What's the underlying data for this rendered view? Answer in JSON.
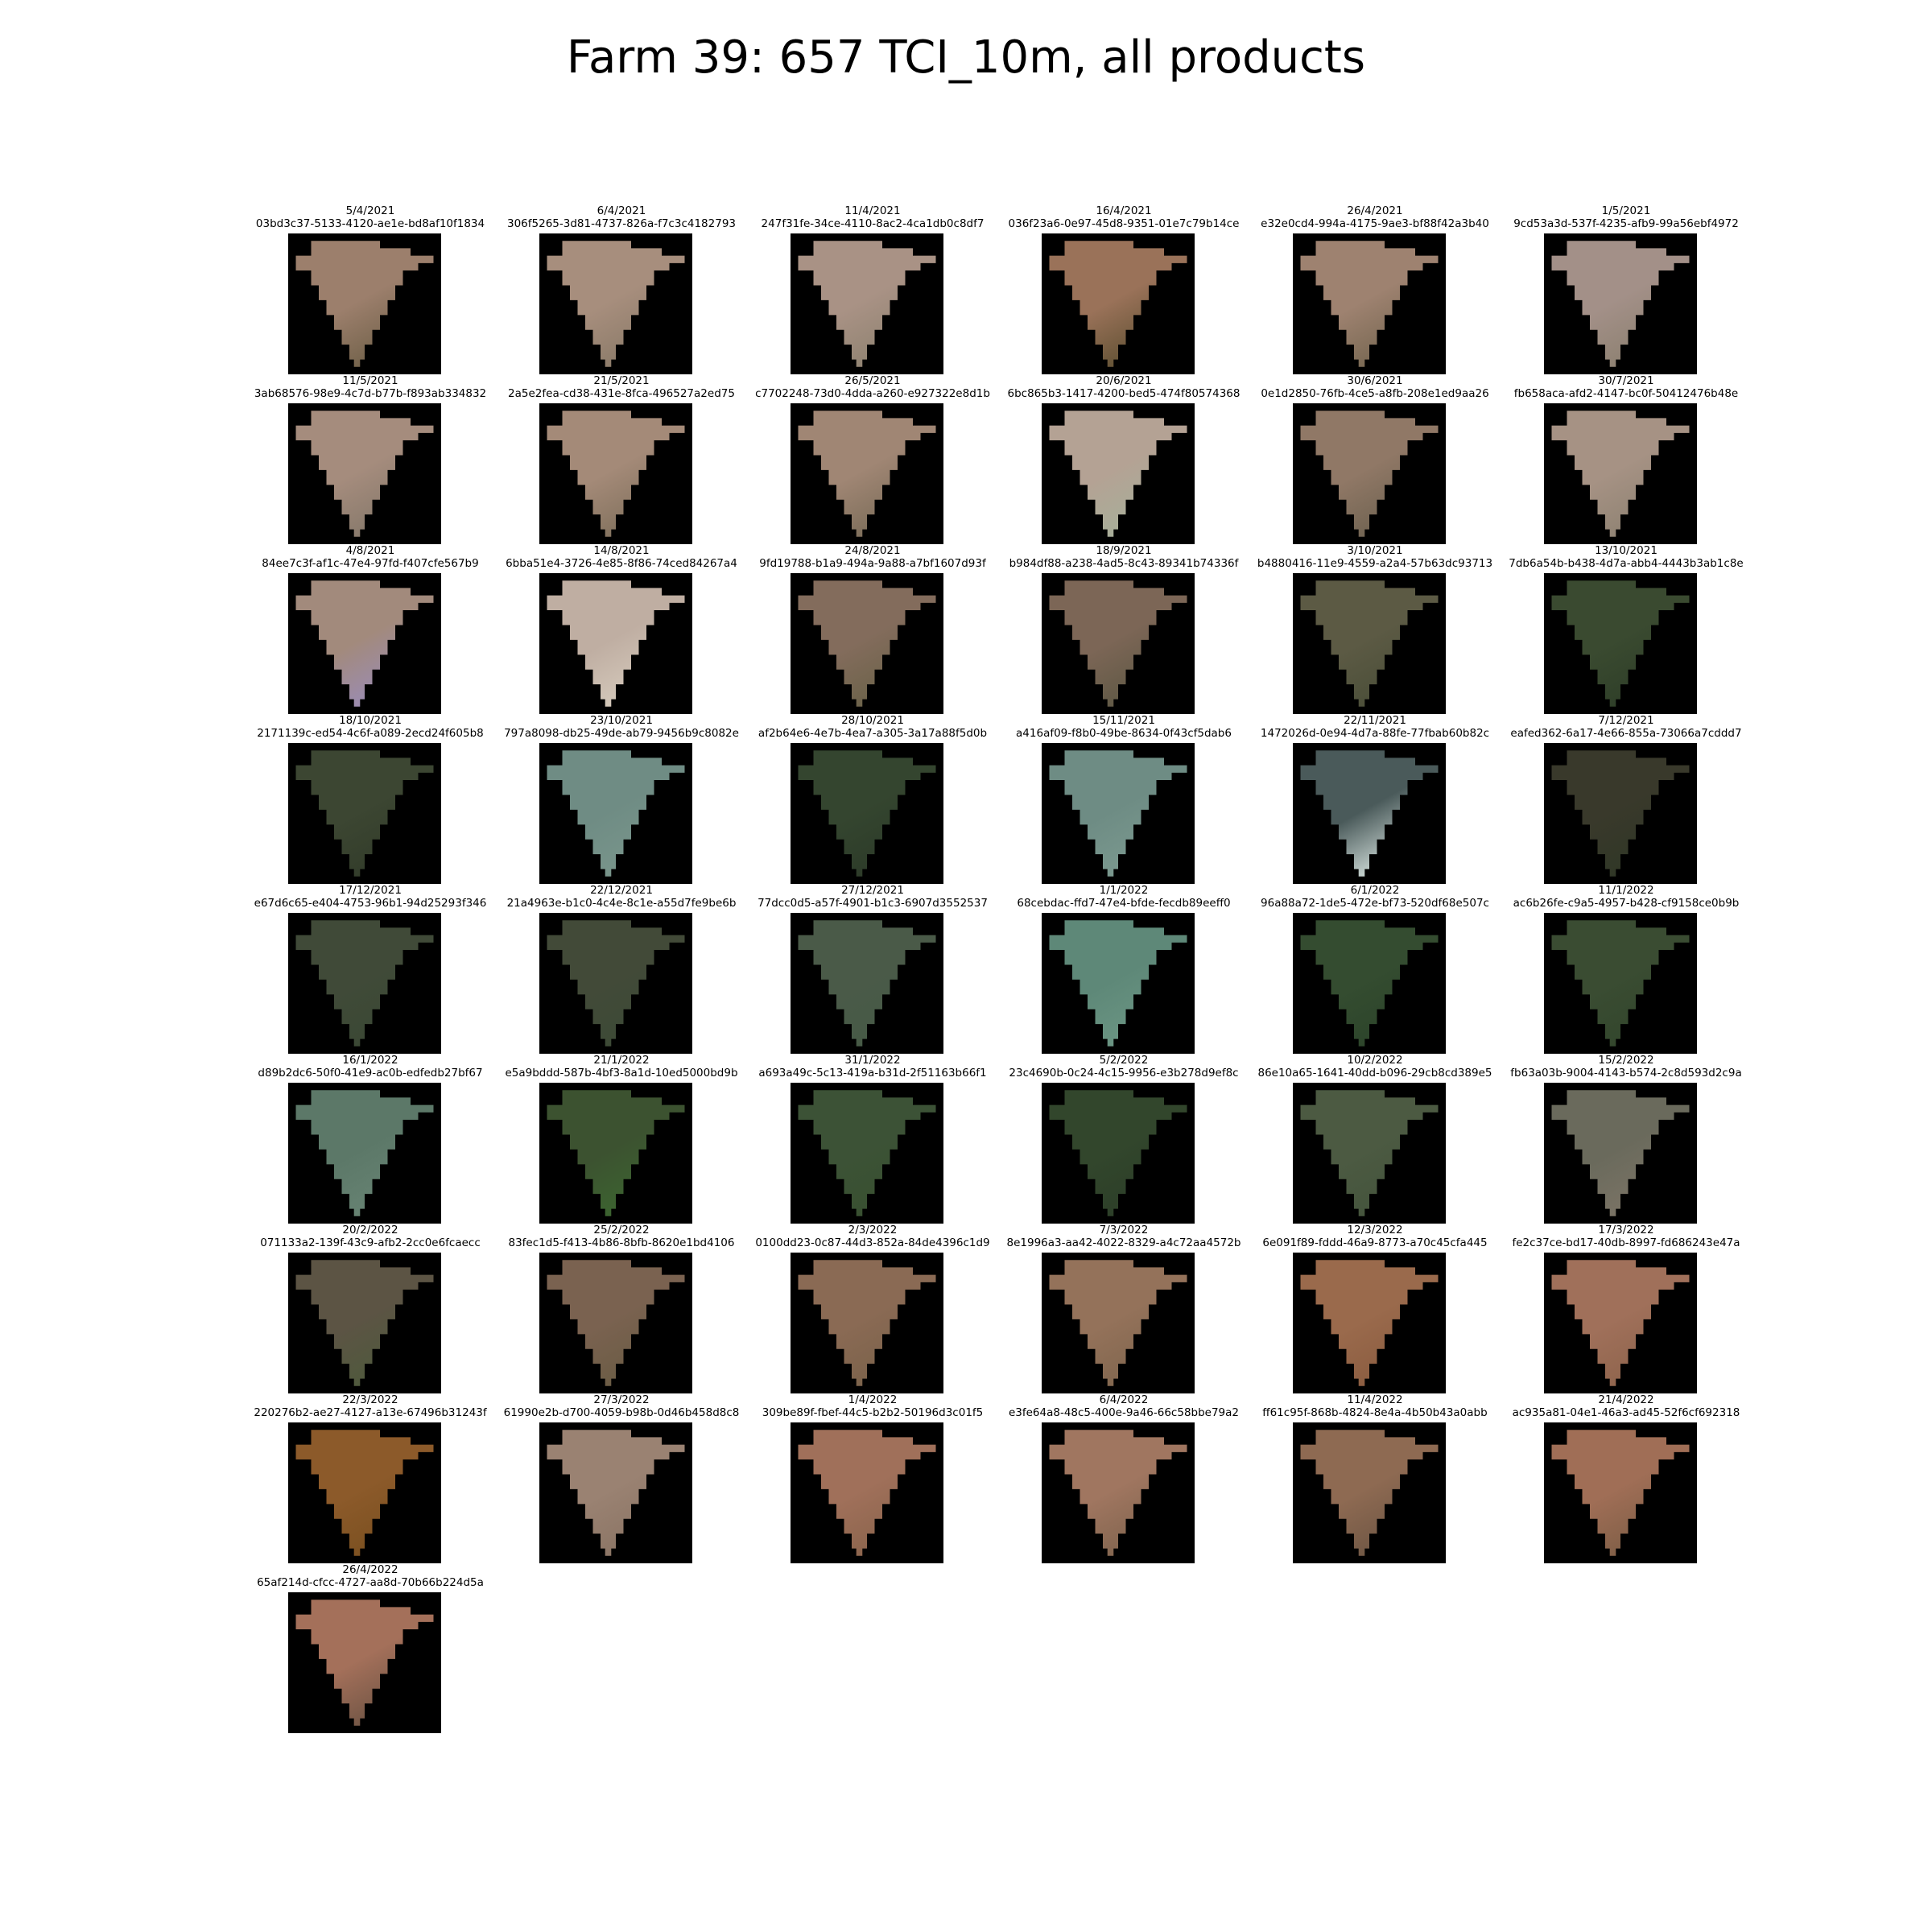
{
  "title": "Farm 39: 657 TCI_10m, all products",
  "products": [
    {
      "date": "5/4/2021",
      "id": "03bd3c37-5133-4120-ae1e-bd8af10f1834",
      "color": "#9c7f6c",
      "shade": "#6f6048"
    },
    {
      "date": "6/4/2021",
      "id": "306f5265-3d81-4737-826a-f7c3c4182793",
      "color": "#a78e7d",
      "shade": "#8a7a68"
    },
    {
      "date": "11/4/2021",
      "id": "247f31fe-34ce-4110-8ac2-4ca1db0c8df7",
      "color": "#a99285",
      "shade": "#8e8270"
    },
    {
      "date": "16/4/2021",
      "id": "036f23a6-0e97-45d8-9351-01e7c79b14ce",
      "color": "#9a7259",
      "shade": "#5e5032"
    },
    {
      "date": "26/4/2021",
      "id": "e32e0cd4-994a-4175-9ae3-bf88f42a3b40",
      "color": "#9e8270",
      "shade": "#756650"
    },
    {
      "date": "1/5/2021",
      "id": "9cd53a3d-537f-4235-afb9-99a56ebf4972",
      "color": "#a39088",
      "shade": "#8c8070"
    },
    {
      "date": "11/5/2021",
      "id": "3ab68576-98e9-4c7d-b77b-f893ab334832",
      "color": "#a58c7d",
      "shade": "#85786a"
    },
    {
      "date": "21/5/2021",
      "id": "2a5e2fea-cd38-431e-8fca-496527a2ed75",
      "color": "#a48a78",
      "shade": "#80705c"
    },
    {
      "date": "26/5/2021",
      "id": "c7702248-73d0-4dda-a260-e927322e8d1b",
      "color": "#a08674",
      "shade": "#7a6c58"
    },
    {
      "date": "20/6/2021",
      "id": "6bc865b3-1417-4200-bed5-474f80574368",
      "color": "#b4a294",
      "shade": "#a6b09a"
    },
    {
      "date": "30/6/2021",
      "id": "0e1d2850-76fb-4ce5-a8fb-208e1ed9aa26",
      "color": "#907866",
      "shade": "#6e6250"
    },
    {
      "date": "30/7/2021",
      "id": "fb658aca-afd2-4147-bc0f-50412476b48e",
      "color": "#a69284",
      "shade": "#8e8272"
    },
    {
      "date": "4/8/2021",
      "id": "84ee7c3f-af1c-47e4-97fd-f407cfe567b9",
      "color": "#a28a7c",
      "shade": "#9a8cb8"
    },
    {
      "date": "14/8/2021",
      "id": "6bba51e4-3726-4e85-8f86-74ced84267a4",
      "color": "#bfaea2",
      "shade": "#d6cbbd"
    },
    {
      "date": "24/8/2021",
      "id": "9fd19788-b1a9-494a-9a88-a7bf1607d93f",
      "color": "#836c5c",
      "shade": "#6a6248"
    },
    {
      "date": "18/9/2021",
      "id": "b984df88-a238-4ad5-8c43-89341b74336f",
      "color": "#7c6656",
      "shade": "#5e5844"
    },
    {
      "date": "3/10/2021",
      "id": "b4880416-11e9-4559-a2a4-57b63dc93713",
      "color": "#5c5a44",
      "shade": "#4a4e38"
    },
    {
      "date": "13/10/2021",
      "id": "7db6a54b-b438-4d7a-abb4-4443b3ab1c8e",
      "color": "#3a4a30",
      "shade": "#2e3e28"
    },
    {
      "date": "18/10/2021",
      "id": "2171139c-ed54-4c6f-a089-2ecd24f605b8",
      "color": "#3c4632",
      "shade": "#323c2a"
    },
    {
      "date": "23/10/2021",
      "id": "797a8098-db25-49de-ab79-9456b9c8082e",
      "color": "#6f8c84",
      "shade": "#7a968c"
    },
    {
      "date": "28/10/2021",
      "id": "af2b64e6-4e7b-4ea7-a305-3a17a88f5d0b",
      "color": "#34452f",
      "shade": "#2c3a28"
    },
    {
      "date": "15/11/2021",
      "id": "a416af09-f8b0-49be-8634-0f43cf5dab6",
      "color": "#6e8c84",
      "shade": "#7c9a90"
    },
    {
      "date": "22/11/2021",
      "id": "1472026d-0e94-4d7a-88fe-77fbab60b82c",
      "color": "#4a5a5a",
      "shade": "#d8e4e0"
    },
    {
      "date": "7/12/2021",
      "id": "eafed362-6a17-4e66-855a-73066a7cddd7",
      "color": "#39392b",
      "shade": "#2f3726"
    },
    {
      "date": "17/12/2021",
      "id": "e67d6c65-e404-4753-96b1-94d25293f346",
      "color": "#404a38",
      "shade": "#3a4834"
    },
    {
      "date": "22/12/2021",
      "id": "21a4963e-b1c0-4c4e-8c1e-a55d7fe9be6b",
      "color": "#424a38",
      "shade": "#3c4a36"
    },
    {
      "date": "27/12/2021",
      "id": "77dcc0d5-a57f-4901-b1c3-6907d3552537",
      "color": "#4a5a48",
      "shade": "#465a46"
    },
    {
      "date": "1/1/2022",
      "id": "68cebdac-ffd7-47e4-bfde-fecdb89eeff0",
      "color": "#5e8878",
      "shade": "#6c9684"
    },
    {
      "date": "6/1/2022",
      "id": "96a88a72-1de5-472e-bf73-520df68e507c",
      "color": "#344c30",
      "shade": "#2c442a"
    },
    {
      "date": "11/1/2022",
      "id": "ac6b26fe-c9a5-4957-b428-cf9158ce0b9b",
      "color": "#3a4c32",
      "shade": "#32462c"
    },
    {
      "date": "16/1/2022",
      "id": "d89b2dc6-50f0-41e9-ac0b-edfedb27bf67",
      "color": "#5c7868",
      "shade": "#688474"
    },
    {
      "date": "21/1/2022",
      "id": "e5a9bddd-587b-4bf3-8a1d-10ed5000bd9b",
      "color": "#3c5230",
      "shade": "#3c6630"
    },
    {
      "date": "31/1/2022",
      "id": "a693a49c-5c13-419a-b31d-2f51163b66f1",
      "color": "#3c5236",
      "shade": "#385030"
    },
    {
      "date": "5/2/2022",
      "id": "23c4690b-0c24-4c15-9956-e3b278d9ef8c",
      "color": "#32462c",
      "shade": "#2c3e28"
    },
    {
      "date": "10/2/2022",
      "id": "86e10a65-1641-40dd-b096-29cb8cd389e5",
      "color": "#4c5a42",
      "shade": "#44543c"
    },
    {
      "date": "15/2/2022",
      "id": "fb63a03b-9004-4143-b574-2c8d593d2c9a",
      "color": "#6a6a5c",
      "shade": "#7c7466"
    },
    {
      "date": "20/2/2022",
      "id": "071133a2-139f-43c9-afb2-2cc0e6fcaecc",
      "color": "#5c5444",
      "shade": "#4e5a3c"
    },
    {
      "date": "25/2/2022",
      "id": "83fec1d5-f413-4b86-8bfb-8620e1bd4106",
      "color": "#7a6250",
      "shade": "#6a5c44"
    },
    {
      "date": "2/3/2022",
      "id": "0100dd23-0c87-44d3-852a-84de4396c1d9",
      "color": "#8a6a54",
      "shade": "#7a624a"
    },
    {
      "date": "7/3/2022",
      "id": "8e1996a3-aa42-4022-8329-a4c72aa4572b",
      "color": "#94725a",
      "shade": "#80664e"
    },
    {
      "date": "12/3/2022",
      "id": "6e091f89-fddd-46a9-8773-a70c45cfa445",
      "color": "#9a6a4c",
      "shade": "#8a5c40"
    },
    {
      "date": "17/3/2022",
      "id": "fe2c37ce-bd17-40db-8997-fd686243e47a",
      "color": "#a0705a",
      "shade": "#8e644c"
    },
    {
      "date": "22/3/2022",
      "id": "220276b2-ae27-4127-a13e-67496b31243f",
      "color": "#8c5a2a",
      "shade": "#7a5020"
    },
    {
      "date": "27/3/2022",
      "id": "61990e2b-d700-4059-b98b-0d46b458d8c8",
      "color": "#9a8272",
      "shade": "#8a7464"
    },
    {
      "date": "1/4/2022",
      "id": "309be89f-fbef-44c5-b2b2-50196d3c01f5",
      "color": "#a0705a",
      "shade": "#8a644c"
    },
    {
      "date": "6/4/2022",
      "id": "e3fe64a8-48c5-400e-9a46-66c58bbe79a2",
      "color": "#a07660",
      "shade": "#80644e"
    },
    {
      "date": "11/4/2022",
      "id": "ff61c95f-868b-4824-8e4a-4b50b43a0abb",
      "color": "#8e6a52",
      "shade": "#6e5644"
    },
    {
      "date": "21/4/2022",
      "id": "ac935a81-04e1-46a3-ad45-52f6cf692318",
      "color": "#a06e56",
      "shade": "#7e5e46"
    },
    {
      "date": "26/4/2022",
      "id": "65af214d-cfcc-4727-aa8d-70b66b224d5a",
      "color": "#a4705a",
      "shade": "#6e5444"
    }
  ]
}
